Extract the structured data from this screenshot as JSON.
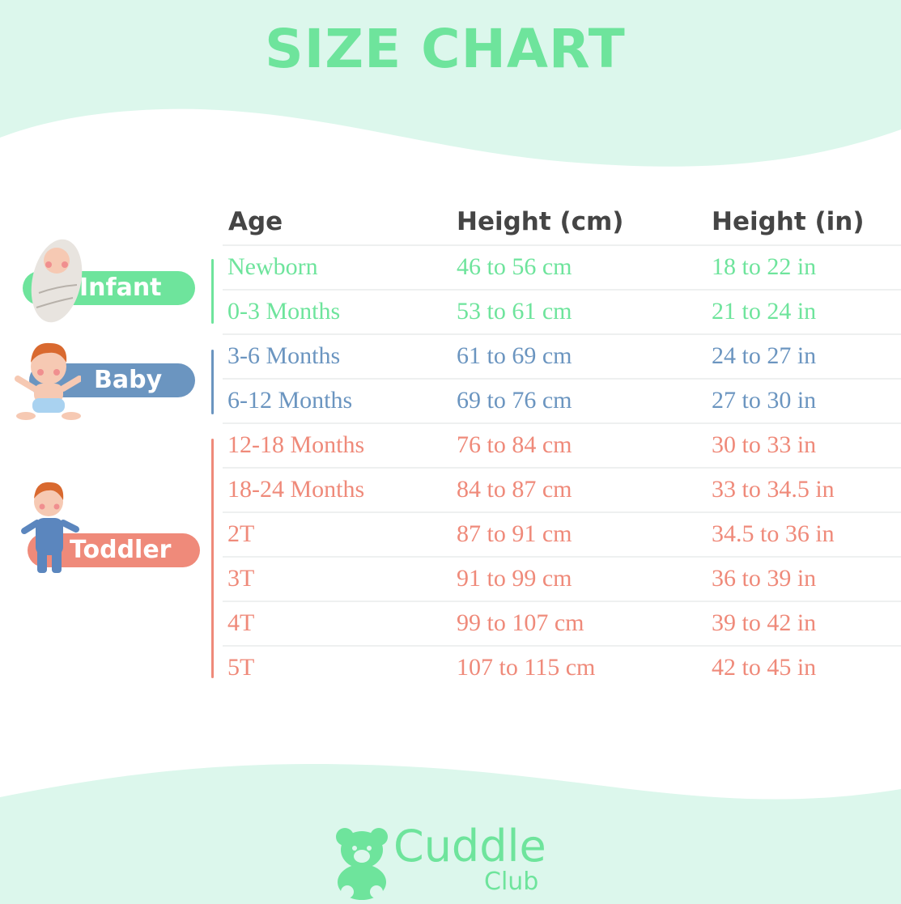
{
  "title": "SIZE CHART",
  "colors": {
    "infant": "#6ee49c",
    "baby": "#6b95c0",
    "toddler": "#ef8a7a",
    "header": "#454545",
    "background": "#dcf7ec"
  },
  "headers": [
    "Age",
    "Height (cm)",
    "Height (in)"
  ],
  "groups": [
    {
      "label": "Infant",
      "icon": "swaddled-baby-icon"
    },
    {
      "label": "Baby",
      "icon": "sitting-baby-icon"
    },
    {
      "label": "Toddler",
      "icon": "standing-toddler-icon"
    }
  ],
  "rows": [
    {
      "group": "infant",
      "age": "Newborn",
      "cm": "46 to 56 cm",
      "in": "18 to 22 in"
    },
    {
      "group": "infant",
      "age": "0-3 Months",
      "cm": "53 to 61 cm",
      "in": "21 to 24 in"
    },
    {
      "group": "baby",
      "age": "3-6 Months",
      "cm": "61 to 69 cm",
      "in": "24 to 27 in"
    },
    {
      "group": "baby",
      "age": "6-12 Months",
      "cm": "69 to 76 cm",
      "in": "27 to 30 in"
    },
    {
      "group": "toddler",
      "age": "12-18 Months",
      "cm": "76 to 84 cm",
      "in": "30 to 33 in"
    },
    {
      "group": "toddler",
      "age": "18-24 Months",
      "cm": "84 to 87 cm",
      "in": "33 to 34.5 in"
    },
    {
      "group": "toddler",
      "age": "2T",
      "cm": "87 to 91 cm",
      "in": "34.5 to 36 in"
    },
    {
      "group": "toddler",
      "age": "3T",
      "cm": "91 to 99 cm",
      "in": "36 to 39 in"
    },
    {
      "group": "toddler",
      "age": "4T",
      "cm": "99 to 107 cm",
      "in": "39 to 42 in"
    },
    {
      "group": "toddler",
      "age": "5T",
      "cm": "107 to 115 cm",
      "in": "42 to 45 in"
    }
  ],
  "logo": {
    "line1": "Cuddle",
    "line2": "Club",
    "icon": "teddy-bear-icon"
  }
}
